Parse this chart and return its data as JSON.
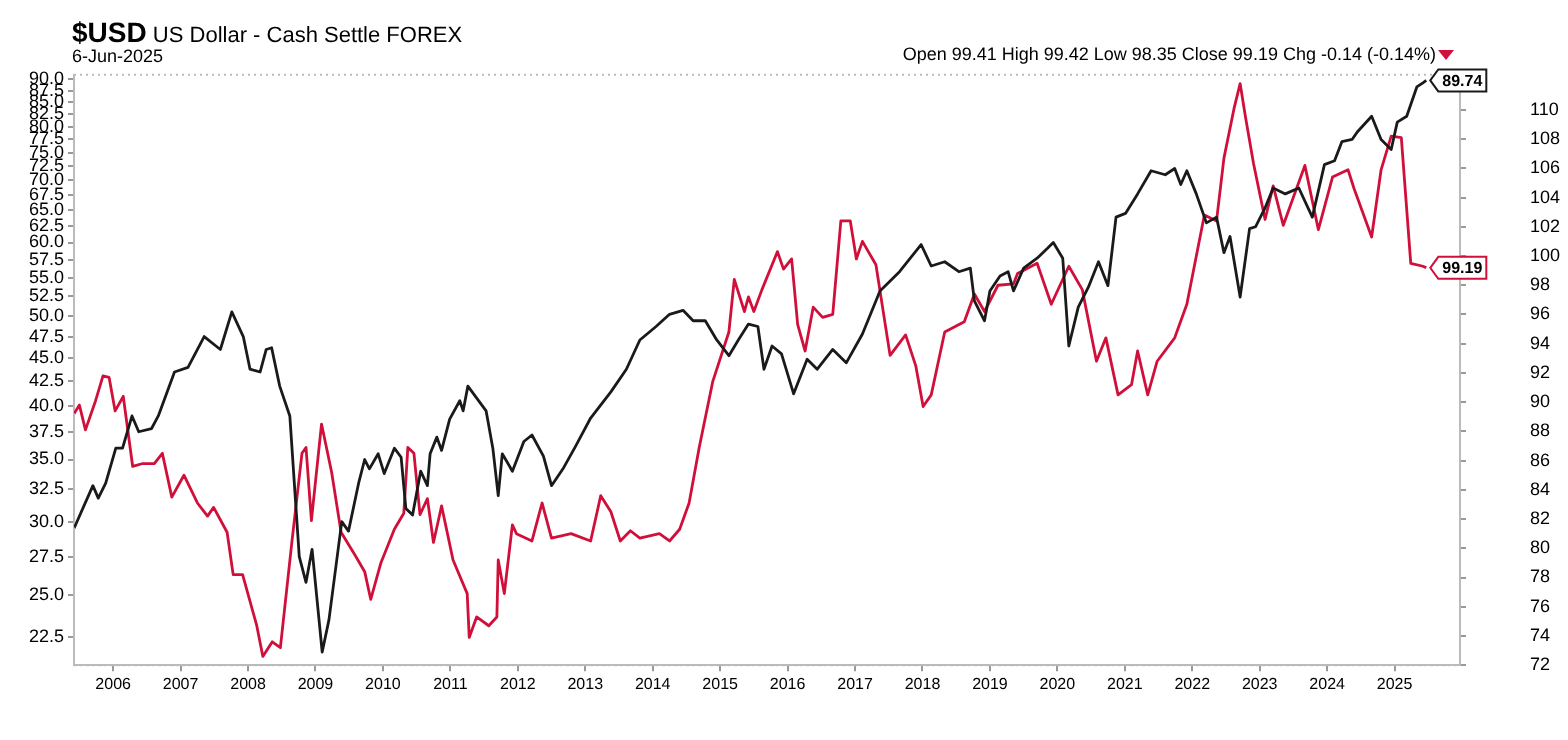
{
  "chart_data": {
    "type": "line",
    "title": "$USD US Dollar - Cash Settle FOREX",
    "subtitle": "6-Jun-2025",
    "annotations": [
      "Open 99.41 High 99.42 Low 98.35 Close 99.19 Chg -0.14 (-0.14%)"
    ],
    "xlim": [
      2005.42,
      2025.97
    ],
    "xticks": [
      2006,
      2007,
      2008,
      2009,
      2010,
      2011,
      2012,
      2013,
      2014,
      2015,
      2016,
      2017,
      2018,
      2019,
      2020,
      2021,
      2022,
      2023,
      2024,
      2025
    ],
    "ylim": [
      21,
      91
    ],
    "yticks": [
      22.5,
      {
        "value": 25,
        "label": "25.0"
      },
      27.5,
      {
        "value": 30,
        "label": "30.0"
      },
      32.5,
      {
        "value": 35,
        "label": "35.0"
      },
      37.5,
      {
        "value": 40,
        "label": "40.0"
      },
      42.5,
      {
        "value": 45,
        "label": "45.0"
      },
      47.5,
      {
        "value": 50,
        "label": "50.0"
      },
      52.5,
      {
        "value": 55,
        "label": "55.0"
      },
      57.5,
      {
        "value": 60,
        "label": "60.0"
      },
      62.5,
      {
        "value": 65,
        "label": "65.0"
      },
      67.5,
      {
        "value": 70,
        "label": "70.0"
      },
      72.5,
      {
        "value": 75,
        "label": "75.0"
      },
      77.5,
      {
        "value": 80,
        "label": "80.0"
      },
      82.5,
      {
        "value": 85,
        "label": "85.0"
      },
      87.5,
      {
        "value": 90,
        "label": "90.0"
      }
    ],
    "y2lim": [
      72,
      112.4
    ],
    "y2ticks": [
      72,
      74,
      76,
      78,
      80,
      82,
      84,
      86,
      88,
      90,
      92,
      94,
      96,
      98,
      100,
      102,
      104,
      106,
      108,
      110
    ],
    "log": "y",
    "grid": false,
    "legend": false,
    "marker": "none",
    "line_style": "solid",
    "series": [
      {
        "color": "#1a1a1a",
        "axis": "y",
        "x": [
          2005.42,
          2005.7,
          2005.78,
          2005.89,
          2006.04,
          2006.14,
          2006.28,
          2006.38,
          2006.57,
          2006.67,
          2006.91,
          2007.11,
          2007.35,
          2007.59,
          2007.76,
          2007.93,
          2008.03,
          2008.18,
          2008.27,
          2008.35,
          2008.47,
          2008.62,
          2008.76,
          2008.86,
          2008.95,
          2009.1,
          2009.2,
          2009.39,
          2009.49,
          2009.64,
          2009.73,
          2009.8,
          2009.93,
          2010.02,
          2010.17,
          2010.27,
          2010.34,
          2010.44,
          2010.56,
          2010.66,
          2010.7,
          2010.8,
          2010.87,
          2010.99,
          2011.14,
          2011.19,
          2011.26,
          2011.53,
          2011.63,
          2011.71,
          2011.77,
          2011.92,
          2012.09,
          2012.21,
          2012.38,
          2012.5,
          2012.68,
          2012.85,
          2013.08,
          2013.38,
          2013.61,
          2013.81,
          2014.05,
          2014.25,
          2014.45,
          2014.6,
          2014.78,
          2014.95,
          2015.13,
          2015.27,
          2015.42,
          2015.56,
          2015.65,
          2015.77,
          2015.91,
          2016.09,
          2016.29,
          2016.44,
          2016.67,
          2016.87,
          2017.11,
          2017.37,
          2017.66,
          2017.98,
          2018.13,
          2018.33,
          2018.54,
          2018.71,
          2018.77,
          2018.92,
          2019.0,
          2019.15,
          2019.27,
          2019.35,
          2019.5,
          2019.7,
          2019.85,
          2019.94,
          2020.08,
          2020.17,
          2020.31,
          2020.46,
          2020.61,
          2020.75,
          2020.87,
          2021.01,
          2021.19,
          2021.39,
          2021.6,
          2021.74,
          2021.83,
          2021.92,
          2022.06,
          2022.21,
          2022.36,
          2022.47,
          2022.56,
          2022.71,
          2022.85,
          2022.94,
          2023.08,
          2023.2,
          2023.38,
          2023.58,
          2023.78,
          2023.96,
          2024.11,
          2024.22,
          2024.37,
          2024.45,
          2024.66,
          2024.8,
          2024.95,
          2025.04,
          2025.18,
          2025.33,
          2025.42,
          2025.47
        ],
        "values": [
          29.5,
          32.8,
          31.8,
          33,
          36,
          36,
          39,
          37.5,
          37.8,
          39,
          43.5,
          44,
          47.5,
          46,
          50.5,
          47.5,
          43.8,
          43.5,
          46,
          46.2,
          42,
          39,
          27.5,
          25.8,
          28,
          21.7,
          23.5,
          30,
          29.3,
          33,
          35,
          34.2,
          35.5,
          33.8,
          36,
          35.2,
          31,
          30.5,
          34,
          32.8,
          35.5,
          37,
          35.8,
          38.7,
          40.5,
          39.5,
          42,
          39.5,
          36,
          32,
          35.5,
          34,
          36.6,
          37.2,
          35.3,
          32.8,
          34.3,
          36.1,
          38.8,
          41.4,
          43.8,
          47.1,
          48.7,
          50.2,
          50.7,
          49.4,
          49.4,
          47.1,
          45.3,
          47.1,
          49,
          48.7,
          43.8,
          46.4,
          45.5,
          41.2,
          44.9,
          43.8,
          46,
          44.5,
          47.8,
          53.2,
          55.8,
          59.7,
          56.6,
          57.2,
          55.8,
          56.3,
          51.9,
          49.4,
          53.2,
          55.2,
          55.8,
          53.2,
          56.3,
          57.7,
          59.1,
          60,
          57.7,
          46.4,
          51.1,
          53.7,
          57.2,
          53.9,
          63.9,
          64.5,
          67.7,
          71.7,
          71,
          72.1,
          69.3,
          71.7,
          67.7,
          63,
          63.9,
          58.5,
          60.9,
          52.4,
          62.1,
          62.4,
          65.4,
          68.7,
          67.7,
          68.7,
          63.9,
          72.8,
          73.5,
          77.1,
          77.5,
          79,
          82.1,
          77.5,
          75.6,
          80.9,
          82.1,
          88.3,
          89.2,
          89.74
        ],
        "value_labels": [
          null,
          null,
          null,
          null,
          null,
          null,
          null,
          null,
          null,
          null,
          null,
          null,
          null,
          null,
          null,
          null,
          null,
          null,
          null,
          null,
          null,
          null,
          null,
          null,
          null,
          null,
          null,
          null,
          null,
          null,
          null,
          null,
          null,
          null,
          null,
          null,
          null,
          null,
          null,
          null,
          null,
          null,
          null,
          null,
          null,
          null,
          null,
          null,
          null,
          null,
          null,
          null,
          null,
          null,
          null,
          null,
          null,
          null,
          null,
          null,
          null,
          null,
          null,
          null,
          null,
          null,
          null,
          null,
          null,
          null,
          null,
          null,
          null,
          null,
          null,
          null,
          null,
          null,
          null,
          null,
          null,
          null,
          null,
          null,
          null,
          null,
          null,
          null,
          null,
          null,
          null,
          null,
          null,
          null,
          null,
          null,
          null,
          null,
          null,
          null,
          null,
          null,
          null,
          null,
          null,
          null,
          null,
          null,
          null,
          null,
          null,
          null,
          null,
          null,
          null,
          null,
          null,
          null,
          null,
          null,
          null,
          null,
          null,
          null,
          null,
          null,
          null,
          null,
          null,
          null,
          null,
          null,
          null,
          null,
          null,
          null,
          null,
          "89.74"
        ]
      },
      {
        "color": "#d0103a",
        "axis": "y2",
        "x": [
          2005.42,
          2005.5,
          2005.59,
          2005.74,
          2005.85,
          2005.94,
          2006.03,
          2006.15,
          2006.29,
          2006.44,
          2006.61,
          2006.73,
          2006.87,
          2007.05,
          2007.25,
          2007.4,
          2007.49,
          2007.69,
          2007.78,
          2007.92,
          2008.13,
          2008.22,
          2008.36,
          2008.48,
          2008.65,
          2008.8,
          2008.86,
          2008.94,
          2009.09,
          2009.24,
          2009.38,
          2009.59,
          2009.73,
          2009.82,
          2009.97,
          2010.17,
          2010.31,
          2010.37,
          2010.46,
          2010.55,
          2010.66,
          2010.75,
          2010.87,
          2011.04,
          2011.25,
          2011.28,
          2011.39,
          2011.57,
          2011.69,
          2011.71,
          2011.8,
          2011.92,
          2011.98,
          2012.21,
          2012.36,
          2012.5,
          2012.79,
          2013.08,
          2013.23,
          2013.38,
          2013.52,
          2013.67,
          2013.81,
          2014.1,
          2014.25,
          2014.4,
          2014.54,
          2014.69,
          2014.89,
          2015.13,
          2015.21,
          2015.36,
          2015.42,
          2015.5,
          2015.62,
          2015.85,
          2015.94,
          2016.06,
          2016.15,
          2016.26,
          2016.38,
          2016.52,
          2016.67,
          2016.79,
          2016.93,
          2017.02,
          2017.11,
          2017.31,
          2017.52,
          2017.75,
          2017.9,
          2018.01,
          2018.13,
          2018.33,
          2018.62,
          2018.77,
          2018.92,
          2019.12,
          2019.35,
          2019.41,
          2019.7,
          2019.91,
          2020.17,
          2020.37,
          2020.58,
          2020.72,
          2020.9,
          2021.1,
          2021.19,
          2021.34,
          2021.48,
          2021.74,
          2021.92,
          2022.18,
          2022.36,
          2022.47,
          2022.62,
          2022.71,
          2022.79,
          2022.91,
          2023.08,
          2023.2,
          2023.35,
          2023.49,
          2023.67,
          2023.87,
          2024.08,
          2024.31,
          2024.4,
          2024.66,
          2024.8,
          2024.95,
          2025.1,
          2025.24,
          2025.42,
          2025.47
        ],
        "values": [
          89.2,
          89.8,
          88.1,
          90.1,
          91.8,
          91.7,
          89.4,
          90.4,
          85.6,
          85.8,
          85.8,
          86.5,
          83.5,
          85,
          83.1,
          82.2,
          82.8,
          81.1,
          78.2,
          78.2,
          74.7,
          72.6,
          73.6,
          73.2,
          80.4,
          86.5,
          86.9,
          81.9,
          88.5,
          85.2,
          81.1,
          79.5,
          78.4,
          76.5,
          79,
          81.3,
          82.4,
          86.9,
          86.5,
          82.3,
          83.4,
          80.4,
          82.9,
          79.2,
          76.9,
          73.9,
          75.3,
          74.7,
          75.3,
          79.2,
          76.9,
          81.6,
          81,
          80.5,
          83.1,
          80.7,
          81,
          80.5,
          83.6,
          82.5,
          80.5,
          81.2,
          80.7,
          81,
          80.5,
          81.3,
          83.1,
          86.9,
          91.4,
          94.8,
          98.4,
          96.2,
          97.2,
          96.2,
          97.7,
          100.3,
          99.1,
          99.8,
          95.3,
          93.5,
          96.5,
          95.8,
          96,
          102.4,
          102.4,
          99.8,
          101,
          99.4,
          93.2,
          94.6,
          92.5,
          89.7,
          90.5,
          94.8,
          95.5,
          97.4,
          96.2,
          98,
          98.1,
          98.8,
          99.5,
          96.7,
          99.3,
          97.7,
          92.8,
          94.4,
          90.5,
          91.2,
          93.5,
          90.5,
          92.8,
          94.4,
          96.7,
          102.8,
          102.4,
          106.7,
          110.1,
          111.8,
          109.5,
          106.3,
          102.5,
          104.8,
          102.1,
          103.9,
          106.2,
          101.8,
          105.4,
          105.9,
          104.6,
          101.3,
          105.9,
          108.2,
          108.1,
          99.5,
          99.3,
          99.19
        ],
        "value_labels": [
          null,
          null,
          null,
          null,
          null,
          null,
          null,
          null,
          null,
          null,
          null,
          null,
          null,
          null,
          null,
          null,
          null,
          null,
          null,
          null,
          null,
          null,
          null,
          null,
          null,
          null,
          null,
          null,
          null,
          null,
          null,
          null,
          null,
          null,
          null,
          null,
          null,
          null,
          null,
          null,
          null,
          null,
          null,
          null,
          null,
          null,
          null,
          null,
          null,
          null,
          null,
          null,
          null,
          null,
          null,
          null,
          null,
          null,
          null,
          null,
          null,
          null,
          null,
          null,
          null,
          null,
          null,
          null,
          null,
          null,
          null,
          null,
          null,
          null,
          null,
          null,
          null,
          null,
          null,
          null,
          null,
          null,
          null,
          null,
          null,
          null,
          null,
          null,
          null,
          null,
          null,
          null,
          null,
          null,
          null,
          null,
          null,
          null,
          null,
          null,
          null,
          null,
          null,
          null,
          null,
          null,
          null,
          null,
          null,
          null,
          null,
          null,
          null,
          null,
          null,
          null,
          null,
          null,
          null,
          null,
          null,
          null,
          null,
          null,
          null,
          null,
          null,
          null,
          null,
          null,
          null,
          null,
          null,
          null,
          null,
          "99.19"
        ]
      }
    ]
  }
}
